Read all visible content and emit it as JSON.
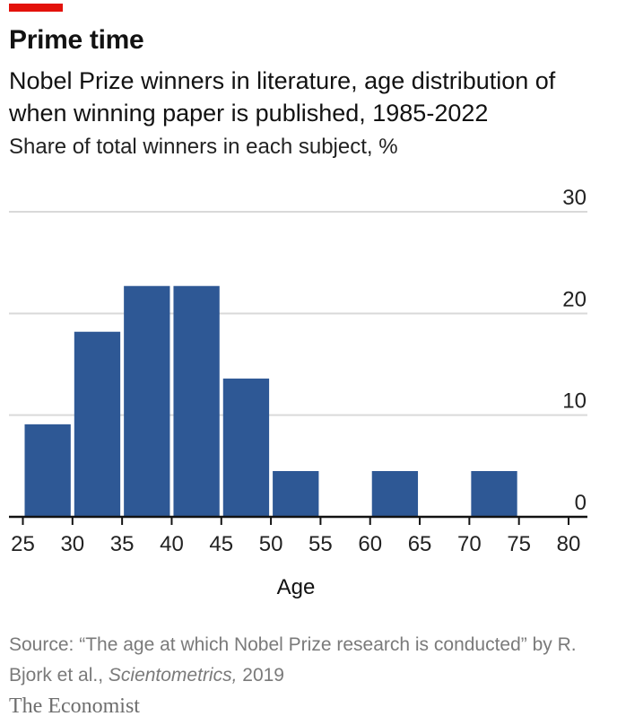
{
  "header": {
    "title": "Prime time",
    "subtitle": "Nobel Prize winners in literature, age distribution of when winning paper is published, 1985-2022",
    "unit_label": "Share of total winners in each subject, %"
  },
  "footer": {
    "source_prefix": "Source: “The age at which Nobel Prize research is conducted” by R. Bjork et al., ",
    "source_journal": "Scientometrics,",
    "source_year": " 2019",
    "logo": "The Economist"
  },
  "colors": {
    "accent": "#e3120b",
    "bar": "#2e5895",
    "grid": "#d9d9d9",
    "axis": "#121212"
  },
  "chart_data": {
    "type": "bar",
    "title": "Prime time",
    "xlabel": "Age",
    "ylabel": "",
    "ylim": [
      0,
      30
    ],
    "yticks": [
      0,
      10,
      20,
      30
    ],
    "xticks": [
      25,
      30,
      35,
      40,
      45,
      50,
      55,
      60,
      65,
      70,
      75,
      80
    ],
    "xlim": [
      25,
      80
    ],
    "grid": true,
    "bins": [
      {
        "from": 25,
        "to": 30,
        "value": 9.1
      },
      {
        "from": 30,
        "to": 35,
        "value": 18.2
      },
      {
        "from": 35,
        "to": 40,
        "value": 22.7
      },
      {
        "from": 40,
        "to": 45,
        "value": 22.7
      },
      {
        "from": 45,
        "to": 50,
        "value": 13.6
      },
      {
        "from": 50,
        "to": 55,
        "value": 4.5
      },
      {
        "from": 55,
        "to": 60,
        "value": 0
      },
      {
        "from": 60,
        "to": 65,
        "value": 4.5
      },
      {
        "from": 65,
        "to": 70,
        "value": 0
      },
      {
        "from": 70,
        "to": 75,
        "value": 4.5
      },
      {
        "from": 75,
        "to": 80,
        "value": 0
      }
    ]
  }
}
